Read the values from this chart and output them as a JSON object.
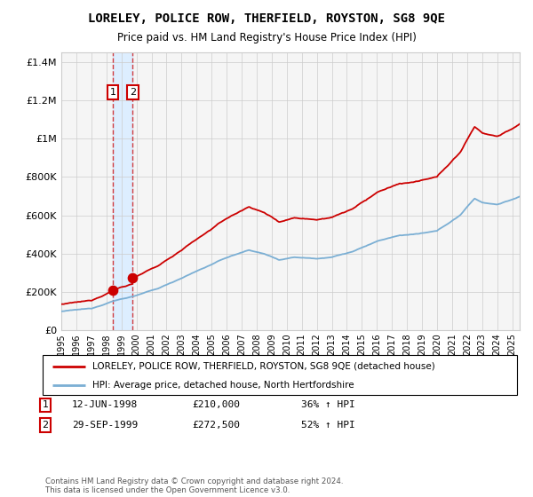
{
  "title": "LORELEY, POLICE ROW, THERFIELD, ROYSTON, SG8 9QE",
  "subtitle": "Price paid vs. HM Land Registry's House Price Index (HPI)",
  "legend_entry1": "LORELEY, POLICE ROW, THERFIELD, ROYSTON, SG8 9QE (detached house)",
  "legend_entry2": "HPI: Average price, detached house, North Hertfordshire",
  "transaction1_date": "12-JUN-1998",
  "transaction1_price": 210000,
  "transaction1_pct": "36% ↑ HPI",
  "transaction1_x": 1998.44,
  "transaction2_date": "29-SEP-1999",
  "transaction2_price": 272500,
  "transaction2_pct": "52% ↑ HPI",
  "transaction2_x": 1999.75,
  "footer": "Contains HM Land Registry data © Crown copyright and database right 2024.\nThis data is licensed under the Open Government Licence v3.0.",
  "xmin": 1995.0,
  "xmax": 2025.5,
  "ymin": 0,
  "ymax": 1450000,
  "red_color": "#cc0000",
  "blue_color": "#7bafd4",
  "shade_color": "#ddeeff",
  "grid_color": "#cccccc",
  "bg_color": "#f5f5f5"
}
